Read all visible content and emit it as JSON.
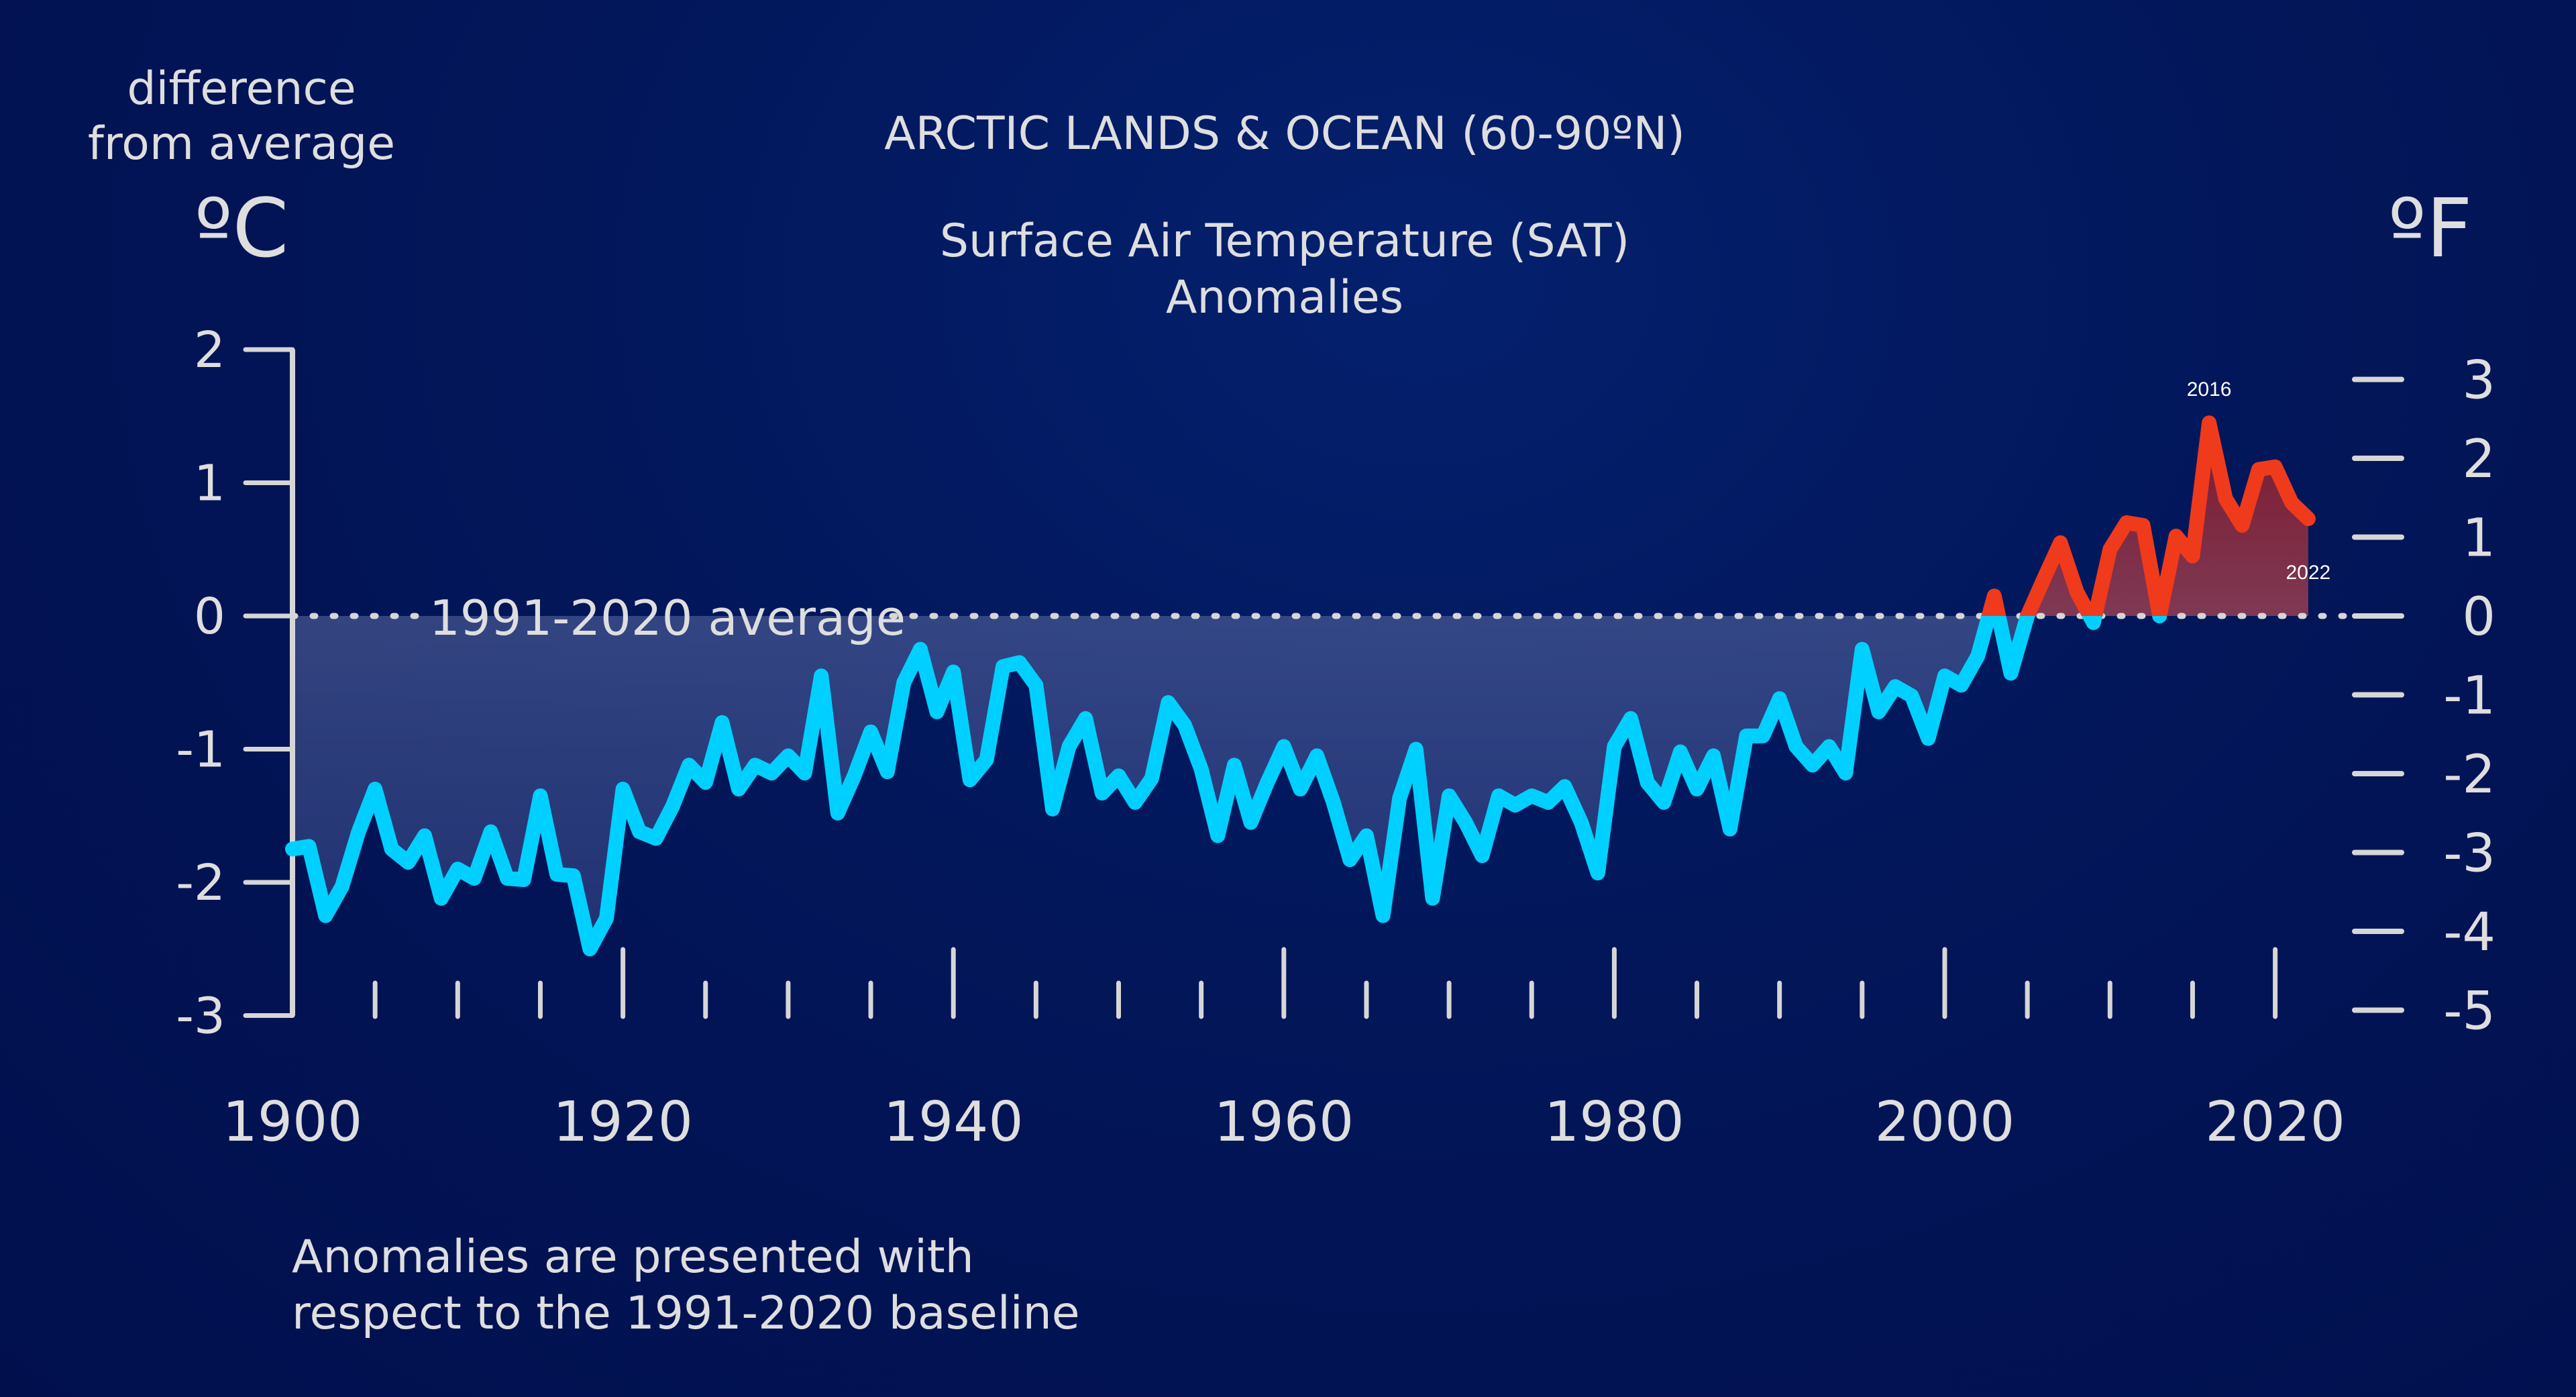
{
  "colors": {
    "background": "#021659",
    "below_line": "#00d0ff",
    "above_line": "#f03a1c",
    "axis": "#d6d6d6",
    "text": "#dedede"
  },
  "labels": {
    "y_axis_title_line1": "difference",
    "y_axis_title_line2": "from average",
    "unit_left": "ºC",
    "unit_right": "ºF",
    "footnote_line1": "Anomalies are presented with",
    "footnote_line2": "respect to the 1991-2020 baseline"
  },
  "chart_data": {
    "type": "area",
    "title": "ARCTIC LANDS & OCEAN (60-90ºN)",
    "subtitle_line1": "Surface Air Temperature (SAT)",
    "subtitle_line2": "Anomalies",
    "xlabel": "",
    "ylabel": "difference from average (ºC)",
    "ylabel_right": "ºF",
    "xlim": [
      1900,
      2022
    ],
    "ylim": [
      -3,
      2
    ],
    "x_ticks": [
      1900,
      1920,
      1940,
      1960,
      1980,
      2000,
      2020
    ],
    "y_ticks_c": [
      2,
      1,
      0,
      -1,
      -2,
      -3
    ],
    "y_ticks_f": [
      3,
      2,
      1,
      0,
      -1,
      -2,
      -3,
      -4,
      -5
    ],
    "baseline_label": "1991-2020 average",
    "baseline_value": 0,
    "annotations": [
      {
        "text": "2016",
        "year": 2016
      },
      {
        "text": "2022",
        "year": 2022
      }
    ],
    "grid": false,
    "legend": "none",
    "series": [
      {
        "name": "SAT anomaly (ºC)",
        "x_start": 1900,
        "values": [
          -1.75,
          -1.73,
          -2.25,
          -2.03,
          -1.62,
          -1.3,
          -1.75,
          -1.85,
          -1.65,
          -2.12,
          -1.9,
          -1.97,
          -1.62,
          -1.97,
          -1.98,
          -1.35,
          -1.94,
          -1.95,
          -2.5,
          -2.27,
          -1.3,
          -1.62,
          -1.67,
          -1.43,
          -1.12,
          -1.25,
          -0.8,
          -1.3,
          -1.12,
          -1.18,
          -1.05,
          -1.18,
          -0.45,
          -1.48,
          -1.2,
          -0.87,
          -1.17,
          -0.5,
          -0.25,
          -0.72,
          -0.42,
          -1.23,
          -1.08,
          -0.38,
          -0.35,
          -0.52,
          -1.45,
          -0.98,
          -0.77,
          -1.33,
          -1.2,
          -1.4,
          -1.22,
          -0.65,
          -0.82,
          -1.15,
          -1.65,
          -1.12,
          -1.55,
          -1.25,
          -0.98,
          -1.3,
          -1.05,
          -1.4,
          -1.83,
          -1.65,
          -2.25,
          -1.37,
          -1.0,
          -2.12,
          -1.35,
          -1.55,
          -1.8,
          -1.35,
          -1.42,
          -1.35,
          -1.4,
          -1.28,
          -1.55,
          -1.93,
          -0.98,
          -0.77,
          -1.25,
          -1.4,
          -1.02,
          -1.3,
          -1.05,
          -1.6,
          -0.9,
          -0.9,
          -0.62,
          -0.98,
          -1.12,
          -0.98,
          -1.18,
          -0.25,
          -0.72,
          -0.53,
          -0.6,
          -0.92,
          -0.45,
          -0.52,
          -0.3,
          0.15,
          -0.43,
          0.0,
          0.28,
          0.55,
          0.18,
          -0.05,
          0.5,
          0.7,
          0.68,
          0.0,
          0.6,
          0.45,
          1.45,
          0.88,
          0.68,
          1.1,
          1.12,
          0.85,
          0.73
        ]
      }
    ]
  }
}
